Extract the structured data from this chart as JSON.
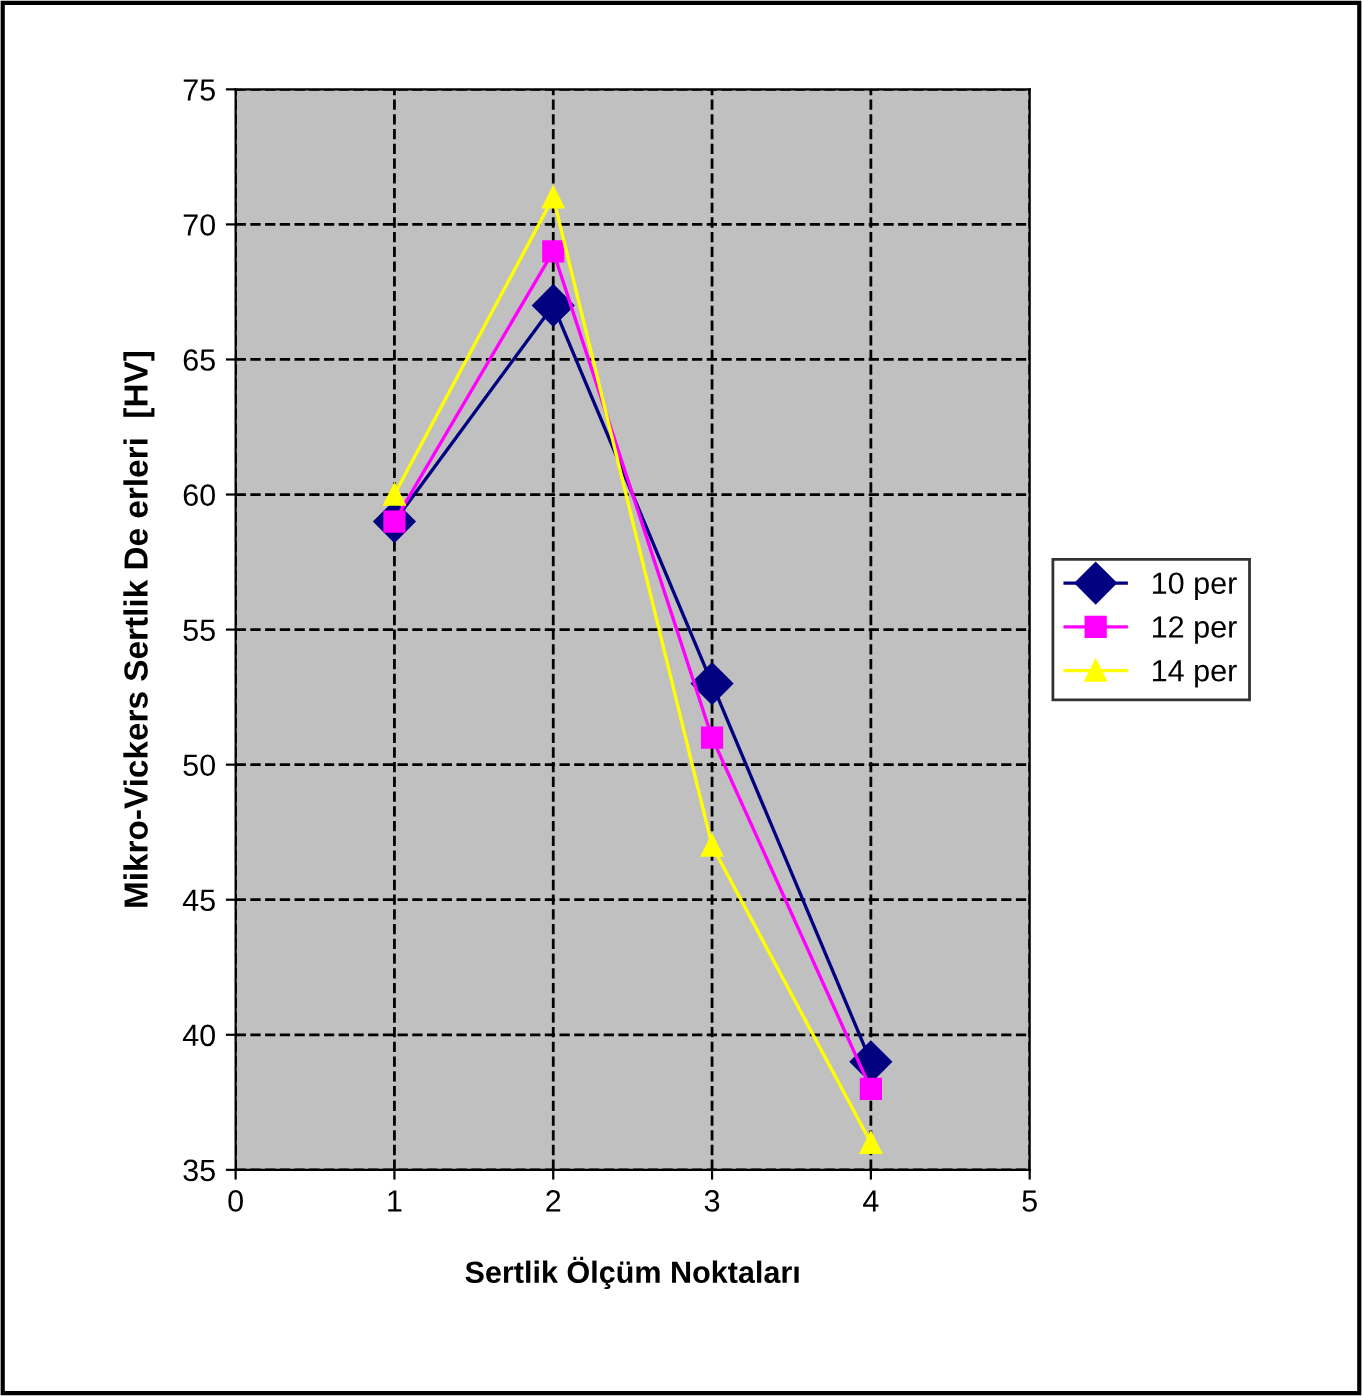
{
  "chart_data": {
    "type": "line",
    "xlabel": "Sertlik Ölçüm Noktaları",
    "ylabel": "Mikro-Vickers Sertlik De erleri  [HV]",
    "x": [
      1,
      2,
      3,
      4
    ],
    "series": [
      {
        "name": "10 per",
        "color": "#000080",
        "marker": "diamond",
        "values": [
          59,
          67,
          53,
          39
        ]
      },
      {
        "name": "12 per",
        "color": "#ff00ff",
        "marker": "square",
        "values": [
          59,
          69,
          51,
          38
        ]
      },
      {
        "name": "14 per",
        "color": "#ffff00",
        "marker": "triangle",
        "values": [
          60,
          71,
          47,
          36
        ]
      }
    ],
    "xlim": [
      0,
      5
    ],
    "xticks": [
      0,
      1,
      2,
      3,
      4,
      5
    ],
    "ylim": [
      35,
      75
    ],
    "yticks": [
      35,
      40,
      45,
      50,
      55,
      60,
      65,
      70,
      75
    ],
    "grid": true,
    "legend": "right",
    "line_style": "solid"
  }
}
